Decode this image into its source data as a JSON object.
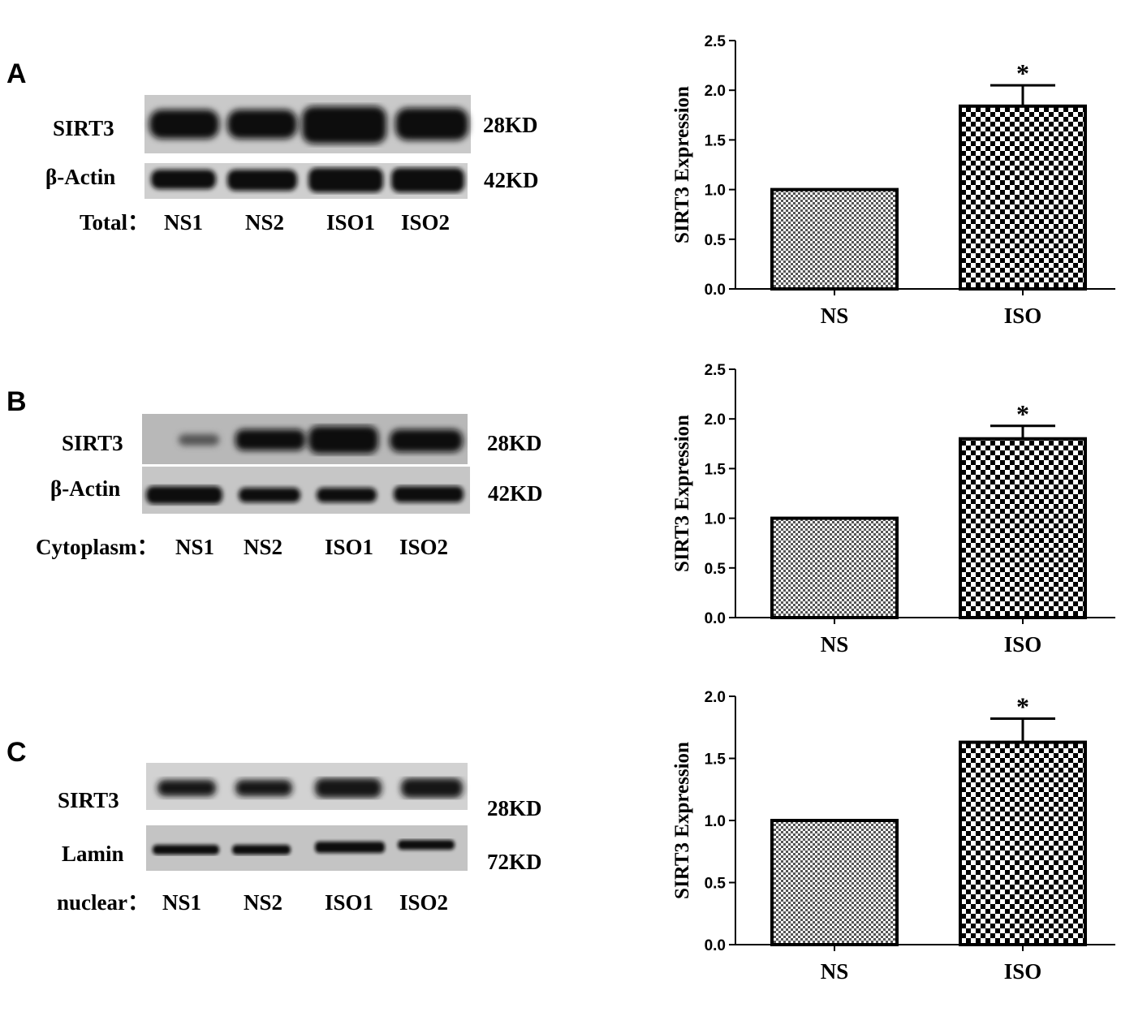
{
  "panels": [
    {
      "letter": "A",
      "blot": {
        "rows": [
          {
            "protein": "SIRT3",
            "size": "28KD"
          },
          {
            "protein": "β-Actin",
            "size": "42KD"
          }
        ],
        "fraction_label": "Total：",
        "lanes": [
          "NS1",
          "NS2",
          "ISO1",
          "ISO2"
        ]
      }
    },
    {
      "letter": "B",
      "blot": {
        "rows": [
          {
            "protein": "SIRT3",
            "size": "28KD"
          },
          {
            "protein": "β-Actin",
            "size": "42KD"
          }
        ],
        "fraction_label": "Cytoplasm：",
        "lanes": [
          "NS1",
          "NS2",
          "ISO1",
          "ISO2"
        ]
      }
    },
    {
      "letter": "C",
      "blot": {
        "rows": [
          {
            "protein": "SIRT3",
            "size": "28KD"
          },
          {
            "protein": "Lamin",
            "size": "72KD"
          }
        ],
        "fraction_label": "nuclear：",
        "lanes": [
          "NS1",
          "NS2",
          "ISO1",
          "ISO2"
        ]
      }
    }
  ],
  "chart_data": [
    {
      "type": "bar",
      "panel": "A",
      "categories": [
        "NS",
        "ISO"
      ],
      "values": [
        1.0,
        1.84
      ],
      "errors": [
        0,
        0.21
      ],
      "significance": [
        "",
        "*"
      ],
      "ylabel": "SIRT3 Expression",
      "ylim": [
        0,
        2.5
      ],
      "yticks": [
        "0.0",
        "0.5",
        "1.0",
        "1.5",
        "2.0",
        "2.5"
      ],
      "patterns": [
        "fine-check",
        "coarse-check"
      ]
    },
    {
      "type": "bar",
      "panel": "B",
      "categories": [
        "NS",
        "ISO"
      ],
      "values": [
        1.0,
        1.8
      ],
      "errors": [
        0,
        0.13
      ],
      "significance": [
        "",
        "*"
      ],
      "ylabel": "SIRT3 Expression",
      "ylim": [
        0,
        2.5
      ],
      "yticks": [
        "0.0",
        "0.5",
        "1.0",
        "1.5",
        "2.0",
        "2.5"
      ],
      "patterns": [
        "fine-check",
        "coarse-check"
      ]
    },
    {
      "type": "bar",
      "panel": "C",
      "categories": [
        "NS",
        "ISO"
      ],
      "values": [
        1.0,
        1.63
      ],
      "errors": [
        0,
        0.19
      ],
      "significance": [
        "",
        "*"
      ],
      "ylabel": "SIRT3 Expression",
      "ylim": [
        0,
        2.0
      ],
      "yticks": [
        "0.0",
        "0.5",
        "1.0",
        "1.5",
        "2.0"
      ],
      "patterns": [
        "fine-check",
        "coarse-check"
      ]
    }
  ]
}
